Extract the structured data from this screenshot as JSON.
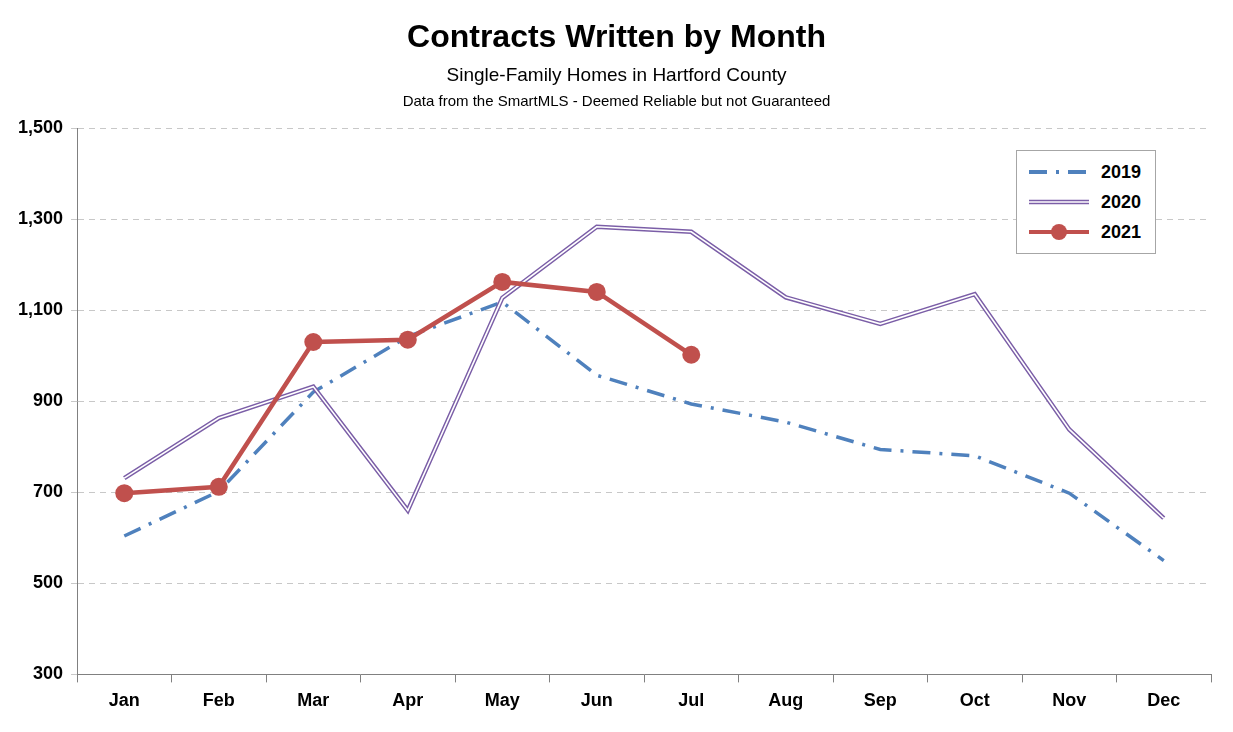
{
  "chart_data": {
    "type": "line",
    "title": "Contracts Written by Month",
    "subtitle": [
      "Single-Family Homes in Hartford County",
      "Data from the SmartMLS - Deemed Reliable but not Guaranteed"
    ],
    "categories": [
      "Jan",
      "Feb",
      "Mar",
      "Apr",
      "May",
      "Jun",
      "Jul",
      "Aug",
      "Sep",
      "Oct",
      "Nov",
      "Dec"
    ],
    "series": [
      {
        "name": "2019",
        "color": "#4f81bd",
        "line_style": "dash-dot",
        "marker": "none",
        "values": [
          604,
          702,
          920,
          1042,
          1118,
          957,
          894,
          854,
          794,
          780,
          698,
          550
        ]
      },
      {
        "name": "2020",
        "color": "#7b5ea7",
        "line_style": "double",
        "marker": "none",
        "values": [
          731,
          863,
          932,
          660,
          1127,
          1283,
          1272,
          1128,
          1070,
          1135,
          838,
          643
        ]
      },
      {
        "name": "2021",
        "color": "#c0504d",
        "line_style": "solid",
        "marker": "circle",
        "values": [
          698,
          712,
          1030,
          1035,
          1162,
          1140,
          1002,
          null,
          null,
          null,
          null,
          null
        ]
      }
    ],
    "ylim": [
      300,
      1500
    ],
    "yticks": [
      300,
      500,
      700,
      900,
      {
        "value": 1100,
        "label": "1,100"
      },
      {
        "value": 1300,
        "label": "1,300"
      },
      {
        "value": 1500,
        "label": "1,500"
      }
    ],
    "grid": true,
    "legend": "top-right"
  }
}
